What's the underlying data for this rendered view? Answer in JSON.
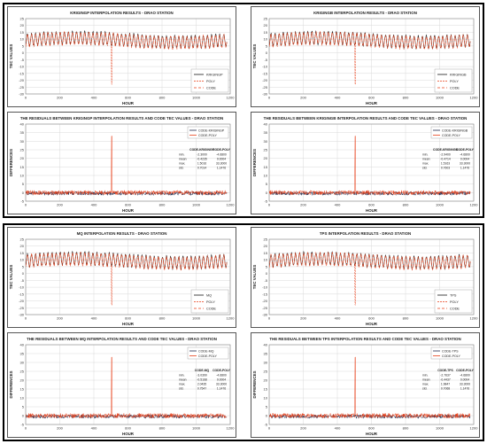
{
  "colors": {
    "black_series": "#1a1a1a",
    "red_series": "#e8401a",
    "orange_residual": "#e8401a",
    "dark_residual": "#1f2a4d",
    "grid": "#d9d9d9"
  },
  "chart_data": [
    {
      "id": "krigingp-results",
      "type": "line",
      "title": "KRIGINGP INTERPOLATION RESULTS - DRAO STATION",
      "xlabel": "HOUR",
      "ylabel": "TEC VALUES",
      "xlim": [
        0,
        1200
      ],
      "ylim": [
        -30,
        25
      ],
      "xticks": [
        0,
        200,
        400,
        600,
        800,
        1000,
        1200
      ],
      "yticks": [
        -30,
        -25,
        -20,
        -15,
        -10,
        -5,
        0,
        5,
        10,
        15,
        20,
        25
      ],
      "grid": true,
      "legend_position": "lower-right",
      "legend": [
        "KRIGINGP",
        "POLY",
        "CODE"
      ],
      "pattern": {
        "period_hours": 24,
        "baseline": 9,
        "amplitude": 4.5,
        "spike_hour": 505,
        "spike_value": -23
      },
      "series": [
        {
          "name": "KRIGINGP",
          "color": "#1a1a1a",
          "dash": ""
        },
        {
          "name": "POLY",
          "color": "#e8401a",
          "dash": "2,1"
        },
        {
          "name": "CODE",
          "color": "#e8401a",
          "dash": "3,2"
        }
      ]
    },
    {
      "id": "krigingb-results",
      "type": "line",
      "title": "KRIGINGB INTERPOLATION RESULTS - DRAO STATION",
      "xlabel": "HOUR",
      "ylabel": "TEC VALUES",
      "xlim": [
        0,
        1200
      ],
      "ylim": [
        -30,
        25
      ],
      "xticks": [
        0,
        200,
        400,
        600,
        800,
        1000,
        1200
      ],
      "yticks": [
        -30,
        -25,
        -20,
        -15,
        -10,
        -5,
        0,
        5,
        10,
        15,
        20,
        25
      ],
      "grid": true,
      "legend_position": "lower-right",
      "legend": [
        "KRIGINGB",
        "POLY",
        "CODE"
      ],
      "pattern": {
        "period_hours": 24,
        "baseline": 9,
        "amplitude": 4.5,
        "spike_hour": 505,
        "spike_value": -23
      },
      "series": [
        {
          "name": "KRIGINGB",
          "color": "#1a1a1a",
          "dash": ""
        },
        {
          "name": "POLY",
          "color": "#e8401a",
          "dash": "2,1"
        },
        {
          "name": "CODE",
          "color": "#e8401a",
          "dash": "3,2"
        }
      ]
    },
    {
      "id": "krigingp-residuals",
      "type": "line",
      "title": "THE RESIDUALS BETWEEN KRIGINGP INTERPOLATION RESULTS AND CODE TEC VALUES - DRAO STATION",
      "xlabel": "HOUR",
      "ylabel": "DIFFERENCES",
      "xlim": [
        0,
        1200
      ],
      "ylim": [
        -5,
        40
      ],
      "xticks": [
        0,
        200,
        400,
        600,
        800,
        1000,
        1200
      ],
      "yticks": [
        -5,
        0,
        5,
        10,
        15,
        20,
        25,
        30,
        35,
        40
      ],
      "grid": true,
      "legend_position": "top-right",
      "legend": [
        "CODE-KRIGINGP",
        "CODE-POLY"
      ],
      "pattern": {
        "spike_hour": 505,
        "spike_value": 33
      },
      "series": [
        {
          "name": "CODE-KRIGINGP",
          "color": "#1f2a4d"
        },
        {
          "name": "CODE-POLY",
          "color": "#e8401a"
        }
      ],
      "stats_table": {
        "headers": [
          "",
          "CODE-KRIGINGP",
          "CODE-POLY"
        ],
        "rows": [
          [
            "min.",
            "-2.3000",
            "-4.6800"
          ],
          [
            "mean",
            "-0.4235",
            "0.0004"
          ],
          [
            "max.",
            "1.5016",
            "33.3000"
          ],
          [
            "std.",
            "0.7014",
            "1.1476"
          ]
        ]
      }
    },
    {
      "id": "krigingb-residuals",
      "type": "line",
      "title": "THE RESIDUALS BETWEEN KRIGINGB INTERPOLATION RESULTS AND CODE TEC VALUES - DRAO STATION",
      "xlabel": "HOUR",
      "ylabel": "DIFFERENCES",
      "xlim": [
        0,
        1200
      ],
      "ylim": [
        -5,
        40
      ],
      "xticks": [
        0,
        200,
        400,
        600,
        800,
        1000,
        1200
      ],
      "yticks": [
        -5,
        0,
        5,
        10,
        15,
        20,
        25,
        30,
        35,
        40
      ],
      "grid": true,
      "legend_position": "top-right",
      "legend": [
        "CODE-KRIGINGB",
        "CODE-POLY"
      ],
      "pattern": {
        "spike_hour": 505,
        "spike_value": 33
      },
      "series": [
        {
          "name": "CODE-KRIGINGB",
          "color": "#1f2a4d"
        },
        {
          "name": "CODE-POLY",
          "color": "#e8401a"
        }
      ],
      "stats_table": {
        "headers": [
          "",
          "CODE-KRIGINGB",
          "CODE-POLY"
        ],
        "rows": [
          [
            "min.",
            "-2.9400",
            "-4.6800"
          ],
          [
            "mean",
            "-0.4714",
            "0.0004"
          ],
          [
            "max.",
            "1.5163",
            "33.3000"
          ],
          [
            "std.",
            "0.7603",
            "1.1476"
          ]
        ]
      }
    },
    {
      "id": "mq-results",
      "type": "line",
      "title": "MQ INTERPOLATION RESULTS - DRAO STATION",
      "xlabel": "HOUR",
      "ylabel": "TEC VALUES",
      "xlim": [
        0,
        1200
      ],
      "ylim": [
        -30,
        25
      ],
      "xticks": [
        0,
        200,
        400,
        600,
        800,
        1000,
        1200
      ],
      "yticks": [
        -30,
        -25,
        -20,
        -15,
        -10,
        -5,
        0,
        5,
        10,
        15,
        20,
        25
      ],
      "grid": true,
      "legend_position": "lower-right",
      "legend": [
        "MQ",
        "POLY",
        "CODE"
      ],
      "pattern": {
        "period_hours": 24,
        "baseline": 9,
        "amplitude": 4.5,
        "spike_hour": 505,
        "spike_value": -23
      },
      "series": [
        {
          "name": "MQ",
          "color": "#1a1a1a",
          "dash": ""
        },
        {
          "name": "POLY",
          "color": "#e8401a",
          "dash": "2,1"
        },
        {
          "name": "CODE",
          "color": "#e8401a",
          "dash": "3,2"
        }
      ]
    },
    {
      "id": "tps-results",
      "type": "line",
      "title": "TPS INTERPOLATION RESULTS - DRAO STATION",
      "xlabel": "HOUR",
      "ylabel": "TEC VALUES",
      "xlim": [
        0,
        1200
      ],
      "ylim": [
        -30,
        25
      ],
      "xticks": [
        0,
        200,
        400,
        600,
        800,
        1000,
        1200
      ],
      "yticks": [
        -30,
        -25,
        -20,
        -15,
        -10,
        -5,
        0,
        5,
        10,
        15,
        20,
        25
      ],
      "grid": true,
      "legend_position": "lower-right",
      "legend": [
        "TPS",
        "POLY",
        "CODE"
      ],
      "pattern": {
        "period_hours": 24,
        "baseline": 9,
        "amplitude": 4.5,
        "spike_hour": 505,
        "spike_value": -23
      },
      "series": [
        {
          "name": "TPS",
          "color": "#1a1a1a",
          "dash": ""
        },
        {
          "name": "POLY",
          "color": "#e8401a",
          "dash": "2,1"
        },
        {
          "name": "CODE",
          "color": "#e8401a",
          "dash": "3,2"
        }
      ]
    },
    {
      "id": "mq-residuals",
      "type": "line",
      "title": "THE RESIDUALS BETWEEN MQ INTERPOLATION RESULTS AND CODE TEC VALUES - DRAO STATION",
      "xlabel": "HOUR",
      "ylabel": "DIFFERENCES",
      "xlim": [
        0,
        1200
      ],
      "ylim": [
        -5,
        40
      ],
      "xticks": [
        0,
        200,
        400,
        600,
        800,
        1000,
        1200
      ],
      "yticks": [
        -5,
        0,
        5,
        10,
        15,
        20,
        25,
        30,
        35,
        40
      ],
      "grid": true,
      "legend_position": "top-right",
      "legend": [
        "CODE-MQ",
        "CODE-POLY"
      ],
      "pattern": {
        "spike_hour": 505,
        "spike_value": 33
      },
      "series": [
        {
          "name": "CODE-MQ",
          "color": "#1f2a4d"
        },
        {
          "name": "CODE-POLY",
          "color": "#e8401a"
        }
      ],
      "stats_table": {
        "headers": [
          "",
          "CODE-MQ",
          "CODE-POLY"
        ],
        "rows": [
          [
            "min.",
            "-3.0390",
            "-4.6800"
          ],
          [
            "mean",
            "-0.5168",
            "0.0004"
          ],
          [
            "max.",
            "2.0435",
            "33.3000"
          ],
          [
            "std.",
            "0.7547",
            "1.1476"
          ]
        ]
      }
    },
    {
      "id": "tps-residuals",
      "type": "line",
      "title": "THE RESIDUALS BETWEEN TPS INTERPOLATION RESULTS AND CODE TEC VALUES - DRAO STATION",
      "xlabel": "HOUR",
      "ylabel": "DIFFERENCES",
      "xlim": [
        0,
        1200
      ],
      "ylim": [
        -5,
        40
      ],
      "xticks": [
        0,
        200,
        400,
        600,
        800,
        1000,
        1200
      ],
      "yticks": [
        -5,
        0,
        5,
        10,
        15,
        20,
        25,
        30,
        35,
        40
      ],
      "grid": true,
      "legend_position": "top-right",
      "legend": [
        "CODE-TPS",
        "CODE-POLY"
      ],
      "pattern": {
        "spike_hour": 505,
        "spike_value": 33
      },
      "series": [
        {
          "name": "CODE-TPS",
          "color": "#1f2a4d"
        },
        {
          "name": "CODE-POLY",
          "color": "#e8401a"
        }
      ],
      "stats_table": {
        "headers": [
          "",
          "CODE-TPS",
          "CODE-POLY"
        ],
        "rows": [
          [
            "min.",
            "-2.7637",
            "-4.6800"
          ],
          [
            "mean",
            "-0.4437",
            "0.0004"
          ],
          [
            "max.",
            "1.9847",
            "33.3000"
          ],
          [
            "std.",
            "0.7068",
            "1.1476"
          ]
        ]
      }
    }
  ]
}
